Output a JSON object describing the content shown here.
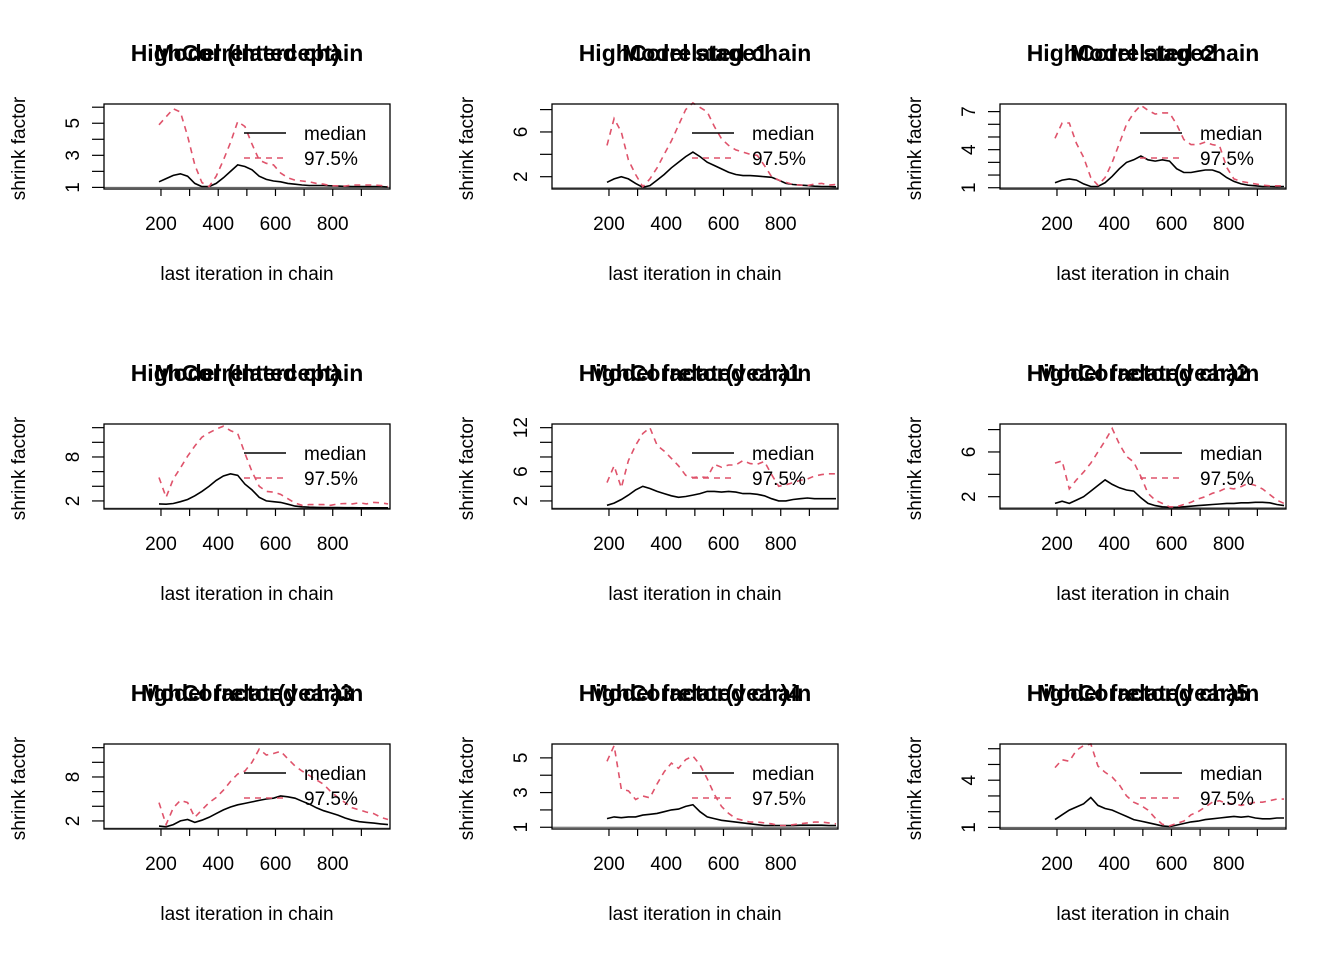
{
  "colors": {
    "median": "#000000",
    "q975": "#DF536B",
    "axis": "#000000",
    "reference": "#555555"
  },
  "legend": {
    "median": "median",
    "q975": "97.5%",
    "position": "top-right"
  },
  "common": {
    "xlabel": "last iteration in chain",
    "ylabel": "shrink factor",
    "xticks": [
      200,
      400,
      600,
      800
    ],
    "xlim": [
      1,
      1000
    ],
    "reference_line": 1
  },
  "chart_data": [
    {
      "type": "line",
      "title_parts": [
        "HighCorrelated chain",
        "Model (Intercept)"
      ],
      "yticks": [
        1,
        3,
        5
      ],
      "ylim": [
        0.9,
        6.2
      ],
      "yminor": [
        2,
        4,
        6
      ],
      "x": [
        193,
        218,
        243,
        268,
        293,
        318,
        343,
        368,
        393,
        418,
        443,
        468,
        493,
        518,
        543,
        568,
        593,
        618,
        643,
        668,
        693,
        718,
        743,
        768,
        793,
        818,
        843,
        868,
        893,
        918,
        943,
        968,
        993
      ],
      "series": [
        {
          "name": "median",
          "values": [
            1.35,
            1.55,
            1.75,
            1.85,
            1.7,
            1.25,
            1.05,
            1.05,
            1.25,
            1.6,
            2.0,
            2.4,
            2.3,
            2.1,
            1.7,
            1.5,
            1.4,
            1.35,
            1.25,
            1.2,
            1.15,
            1.12,
            1.12,
            1.12,
            1.1,
            1.08,
            1.06,
            1.05,
            1.05,
            1.05,
            1.05,
            1.05,
            1.02
          ]
        },
        {
          "name": "97.5%",
          "values": [
            4.9,
            5.4,
            5.9,
            5.7,
            4.2,
            2.4,
            1.3,
            1.05,
            1.7,
            2.7,
            3.8,
            5.1,
            4.8,
            3.7,
            2.7,
            2.5,
            2.4,
            1.9,
            1.6,
            1.45,
            1.4,
            1.35,
            1.25,
            1.2,
            1.1,
            1.1,
            1.08,
            1.15,
            1.15,
            1.15,
            1.15,
            1.12,
            1.05
          ]
        }
      ]
    },
    {
      "type": "line",
      "title_parts": [
        "HighCorrelated chain",
        "Model stage1"
      ],
      "yticks": [
        2,
        6
      ],
      "ylim": [
        0.9,
        8.5
      ],
      "yminor": [
        4,
        8
      ],
      "x": [
        193,
        218,
        243,
        268,
        293,
        318,
        343,
        368,
        393,
        418,
        443,
        468,
        493,
        518,
        543,
        568,
        593,
        618,
        643,
        668,
        693,
        718,
        743,
        768,
        793,
        818,
        843,
        868,
        893,
        918,
        943,
        968,
        993
      ],
      "series": [
        {
          "name": "median",
          "values": [
            1.5,
            1.8,
            2.0,
            1.8,
            1.4,
            1.05,
            1.2,
            1.7,
            2.2,
            2.8,
            3.3,
            3.8,
            4.2,
            3.8,
            3.3,
            3.0,
            2.7,
            2.4,
            2.2,
            2.1,
            2.1,
            2.05,
            2.0,
            1.95,
            1.7,
            1.4,
            1.3,
            1.25,
            1.2,
            1.15,
            1.12,
            1.12,
            1.1
          ]
        },
        {
          "name": "97.5%",
          "values": [
            4.8,
            7.2,
            6.0,
            3.5,
            2.2,
            1.1,
            1.8,
            2.8,
            4.0,
            5.2,
            6.6,
            8.0,
            8.6,
            8.2,
            7.8,
            6.5,
            5.4,
            4.8,
            4.4,
            4.2,
            4.0,
            3.9,
            3.0,
            2.0,
            1.7,
            1.5,
            1.3,
            1.25,
            1.2,
            1.35,
            1.4,
            1.25,
            1.3
          ]
        }
      ]
    },
    {
      "type": "line",
      "title_parts": [
        "HighCorrelated chain",
        "Model stage2"
      ],
      "yticks": [
        1,
        4,
        7
      ],
      "ylim": [
        0.9,
        7.6
      ],
      "yminor": [
        2,
        3,
        5,
        6
      ],
      "x": [
        193,
        218,
        243,
        268,
        293,
        318,
        343,
        368,
        393,
        418,
        443,
        468,
        493,
        518,
        543,
        568,
        593,
        618,
        643,
        668,
        693,
        718,
        743,
        768,
        793,
        818,
        843,
        868,
        893,
        918,
        943,
        968,
        993
      ],
      "series": [
        {
          "name": "median",
          "values": [
            1.4,
            1.6,
            1.7,
            1.6,
            1.3,
            1.1,
            1.1,
            1.4,
            1.9,
            2.5,
            3.0,
            3.2,
            3.5,
            3.2,
            3.1,
            3.2,
            3.1,
            2.5,
            2.2,
            2.2,
            2.3,
            2.4,
            2.4,
            2.2,
            1.8,
            1.5,
            1.3,
            1.2,
            1.15,
            1.1,
            1.1,
            1.08,
            1.1
          ]
        },
        {
          "name": "97.5%",
          "values": [
            4.9,
            6.1,
            6.1,
            4.5,
            3.4,
            1.8,
            1.2,
            1.8,
            3.0,
            4.5,
            6.0,
            6.9,
            7.5,
            7.1,
            6.8,
            6.9,
            6.9,
            6.0,
            4.8,
            4.4,
            4.4,
            4.6,
            4.4,
            4.3,
            2.6,
            1.7,
            1.5,
            1.4,
            1.3,
            1.2,
            1.15,
            1.15,
            1.15
          ]
        }
      ]
    },
    {
      "type": "line",
      "title_parts": [
        "HighCorrelated chain",
        "Model (Intercept)"
      ],
      "yticks": [
        2,
        8
      ],
      "ylim": [
        0.9,
        12.5
      ],
      "yminor": [
        4,
        6,
        10,
        12
      ],
      "x": [
        193,
        218,
        243,
        268,
        293,
        318,
        343,
        368,
        393,
        418,
        443,
        468,
        493,
        518,
        543,
        568,
        593,
        618,
        643,
        668,
        693,
        718,
        743,
        768,
        793,
        818,
        843,
        868,
        893,
        918,
        943,
        968,
        993
      ],
      "series": [
        {
          "name": "median",
          "values": [
            1.6,
            1.55,
            1.65,
            1.9,
            2.2,
            2.7,
            3.3,
            4.0,
            4.8,
            5.4,
            5.7,
            5.5,
            4.3,
            3.5,
            2.5,
            2.0,
            1.9,
            1.8,
            1.55,
            1.3,
            1.2,
            1.15,
            1.12,
            1.1,
            1.1,
            1.1,
            1.08,
            1.08,
            1.07,
            1.07,
            1.07,
            1.07,
            1.06
          ]
        },
        {
          "name": "97.5%",
          "values": [
            5.2,
            2.5,
            5.0,
            6.5,
            8.1,
            9.5,
            10.7,
            11.3,
            11.8,
            12.2,
            11.6,
            11.2,
            8.5,
            6.0,
            4.0,
            3.3,
            3.2,
            2.9,
            2.3,
            1.7,
            1.4,
            1.5,
            1.5,
            1.5,
            1.4,
            1.6,
            1.65,
            1.6,
            1.75,
            1.6,
            1.8,
            1.75,
            1.6
          ]
        }
      ]
    },
    {
      "type": "line",
      "title_parts": [
        "HighCorrelated chain",
        "Model factor(year)1"
      ],
      "yticks": [
        2,
        6,
        12
      ],
      "ylim": [
        0.9,
        12.5
      ],
      "yminor": [
        4,
        8,
        10
      ],
      "x": [
        193,
        218,
        243,
        268,
        293,
        318,
        343,
        368,
        393,
        418,
        443,
        468,
        493,
        518,
        543,
        568,
        593,
        618,
        643,
        668,
        693,
        718,
        743,
        768,
        793,
        818,
        843,
        868,
        893,
        918,
        943,
        968,
        993
      ],
      "series": [
        {
          "name": "median",
          "values": [
            1.4,
            1.7,
            2.2,
            2.8,
            3.5,
            4.0,
            3.7,
            3.3,
            3.0,
            2.7,
            2.5,
            2.6,
            2.8,
            3.0,
            3.3,
            3.3,
            3.2,
            3.3,
            3.2,
            3.0,
            3.0,
            2.9,
            2.7,
            2.3,
            2.0,
            2.0,
            2.2,
            2.3,
            2.4,
            2.3,
            2.3,
            2.3,
            2.3
          ]
        },
        {
          "name": "97.5%",
          "values": [
            4.5,
            6.8,
            3.8,
            7.5,
            9.6,
            11.2,
            12.0,
            9.6,
            8.8,
            7.8,
            6.8,
            5.5,
            5.2,
            5.3,
            5.2,
            7.0,
            6.6,
            6.9,
            6.9,
            7.5,
            7.1,
            7.0,
            7.4,
            5.6,
            4.0,
            4.2,
            4.5,
            4.8,
            5.0,
            5.4,
            5.6,
            5.7,
            5.7
          ]
        }
      ]
    },
    {
      "type": "line",
      "title_parts": [
        "HighCorrelated chain",
        "Model factor(year)2"
      ],
      "yticks": [
        2,
        6
      ],
      "ylim": [
        0.9,
        8.5
      ],
      "yminor": [
        4,
        8
      ],
      "x": [
        193,
        218,
        243,
        268,
        293,
        318,
        343,
        368,
        393,
        418,
        443,
        468,
        493,
        518,
        543,
        568,
        593,
        618,
        643,
        668,
        693,
        718,
        743,
        768,
        793,
        818,
        843,
        868,
        893,
        918,
        943,
        968,
        993
      ],
      "series": [
        {
          "name": "median",
          "values": [
            1.4,
            1.6,
            1.4,
            1.7,
            2.0,
            2.5,
            3.0,
            3.5,
            3.1,
            2.8,
            2.6,
            2.5,
            1.9,
            1.4,
            1.2,
            1.1,
            1.05,
            1.05,
            1.1,
            1.15,
            1.2,
            1.25,
            1.3,
            1.35,
            1.4,
            1.4,
            1.45,
            1.45,
            1.5,
            1.5,
            1.45,
            1.3,
            1.2
          ]
        },
        {
          "name": "97.5%",
          "values": [
            5.0,
            5.2,
            2.7,
            3.5,
            4.2,
            5.0,
            6.0,
            7.0,
            8.1,
            6.7,
            5.6,
            5.1,
            3.8,
            2.3,
            1.7,
            1.4,
            1.1,
            1.1,
            1.3,
            1.5,
            1.8,
            2.0,
            2.3,
            2.5,
            2.8,
            2.7,
            2.9,
            3.2,
            3.0,
            2.7,
            2.2,
            1.7,
            1.4
          ]
        }
      ]
    },
    {
      "type": "line",
      "title_parts": [
        "HighCorrelated chain",
        "Model factor(year)3"
      ],
      "yticks": [
        2,
        8
      ],
      "ylim": [
        0.9,
        12.5
      ],
      "yminor": [
        4,
        6,
        10,
        12
      ],
      "x": [
        193,
        218,
        243,
        268,
        293,
        318,
        343,
        368,
        393,
        418,
        443,
        468,
        493,
        518,
        543,
        568,
        593,
        618,
        643,
        668,
        693,
        718,
        743,
        768,
        793,
        818,
        843,
        868,
        893,
        918,
        943,
        968,
        993
      ],
      "series": [
        {
          "name": "median",
          "values": [
            1.3,
            1.2,
            1.5,
            2.0,
            2.2,
            1.8,
            2.1,
            2.5,
            3.0,
            3.5,
            3.9,
            4.2,
            4.4,
            4.6,
            4.8,
            5.0,
            5.1,
            5.4,
            5.3,
            5.1,
            4.7,
            4.3,
            3.8,
            3.4,
            3.1,
            2.8,
            2.4,
            2.1,
            1.9,
            1.8,
            1.7,
            1.6,
            1.5
          ]
        },
        {
          "name": "97.5%",
          "values": [
            4.5,
            1.5,
            3.8,
            4.8,
            4.5,
            2.5,
            3.5,
            4.5,
            5.2,
            6.2,
            7.4,
            8.4,
            8.8,
            10.0,
            11.8,
            11.0,
            11.2,
            11.5,
            10.5,
            9.5,
            8.8,
            8.2,
            7.6,
            7.0,
            6.0,
            5.2,
            4.5,
            3.8,
            3.5,
            3.2,
            3.0,
            2.5,
            2.2
          ]
        }
      ]
    },
    {
      "type": "line",
      "title_parts": [
        "HighCorrelated chain",
        "Model factor(year)4"
      ],
      "yticks": [
        1,
        3,
        5
      ],
      "ylim": [
        0.9,
        5.8
      ],
      "yminor": [
        2,
        4
      ],
      "x": [
        193,
        218,
        243,
        268,
        293,
        318,
        343,
        368,
        393,
        418,
        443,
        468,
        493,
        518,
        543,
        568,
        593,
        618,
        643,
        668,
        693,
        718,
        743,
        768,
        793,
        818,
        843,
        868,
        893,
        918,
        943,
        968,
        993
      ],
      "series": [
        {
          "name": "median",
          "values": [
            1.5,
            1.6,
            1.55,
            1.6,
            1.6,
            1.7,
            1.75,
            1.8,
            1.9,
            2.0,
            2.05,
            2.2,
            2.3,
            1.9,
            1.6,
            1.5,
            1.4,
            1.35,
            1.3,
            1.25,
            1.2,
            1.15,
            1.1,
            1.1,
            1.1,
            1.1,
            1.1,
            1.12,
            1.12,
            1.12,
            1.12,
            1.1,
            1.1
          ]
        },
        {
          "name": "97.5%",
          "values": [
            4.8,
            5.7,
            3.2,
            3.1,
            2.6,
            2.8,
            2.7,
            3.5,
            4.2,
            4.7,
            4.4,
            4.9,
            5.1,
            4.6,
            3.8,
            2.9,
            2.2,
            1.8,
            1.5,
            1.4,
            1.3,
            1.3,
            1.25,
            1.2,
            1.1,
            1.1,
            1.15,
            1.2,
            1.25,
            1.3,
            1.3,
            1.25,
            1.2
          ]
        }
      ]
    },
    {
      "type": "line",
      "title_parts": [
        "HighCorrelated chain",
        "Model factor(year)5"
      ],
      "yticks": [
        1,
        4
      ],
      "ylim": [
        0.9,
        6.3
      ],
      "yminor": [
        2,
        3,
        5,
        6
      ],
      "x": [
        193,
        218,
        243,
        268,
        293,
        318,
        343,
        368,
        393,
        418,
        443,
        468,
        493,
        518,
        543,
        568,
        593,
        618,
        643,
        668,
        693,
        718,
        743,
        768,
        793,
        818,
        843,
        868,
        893,
        918,
        943,
        968,
        993
      ],
      "series": [
        {
          "name": "median",
          "values": [
            1.5,
            1.8,
            2.1,
            2.3,
            2.5,
            2.9,
            2.4,
            2.2,
            2.1,
            1.9,
            1.7,
            1.5,
            1.4,
            1.3,
            1.2,
            1.1,
            1.05,
            1.15,
            1.25,
            1.35,
            1.4,
            1.5,
            1.55,
            1.6,
            1.65,
            1.7,
            1.65,
            1.7,
            1.6,
            1.55,
            1.55,
            1.6,
            1.6
          ]
        },
        {
          "name": "97.5%",
          "values": [
            4.8,
            5.3,
            5.2,
            5.9,
            6.2,
            6.3,
            4.9,
            4.5,
            4.2,
            3.7,
            3.0,
            2.6,
            2.4,
            2.1,
            1.6,
            1.2,
            1.1,
            1.25,
            1.4,
            1.8,
            2.0,
            2.3,
            2.6,
            2.7,
            2.5,
            2.5,
            2.4,
            2.5,
            2.6,
            2.6,
            2.7,
            2.8,
            2.8
          ]
        }
      ]
    }
  ]
}
